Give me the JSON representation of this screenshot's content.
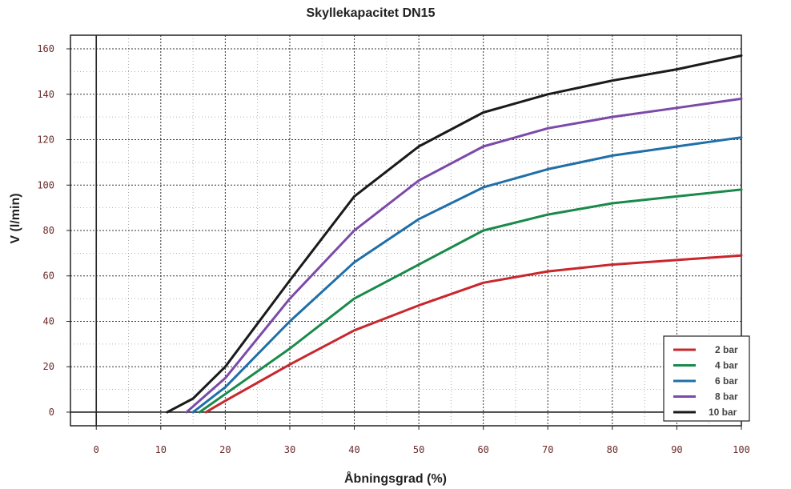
{
  "chart_data": {
    "type": "line",
    "title": "Skyllekapacitet DN15",
    "xlabel": "Åbningsgrad (%)",
    "ylabel": "V (l/min)",
    "xlim": [
      -4,
      100
    ],
    "ylim": [
      -6,
      166
    ],
    "xticks": [
      "0",
      "10",
      "20",
      "30",
      "40",
      "50",
      "60",
      "70",
      "80",
      "90",
      "100"
    ],
    "yticks": [
      "0",
      "20",
      "40",
      "60",
      "80",
      "100",
      "120",
      "140",
      "160"
    ],
    "grid": true,
    "legend_position": "bottom-right",
    "series": [
      {
        "name": "2 bar",
        "color": "#c8272d",
        "x": [
          17,
          20,
          30,
          40,
          50,
          60,
          70,
          80,
          90,
          100
        ],
        "y": [
          0,
          5,
          21,
          36,
          47,
          57,
          62,
          65,
          67,
          69
        ]
      },
      {
        "name": "4 bar",
        "color": "#1a8a4a",
        "x": [
          16,
          20,
          30,
          40,
          50,
          60,
          70,
          80,
          90,
          100
        ],
        "y": [
          0,
          8,
          28,
          50,
          65,
          80,
          87,
          92,
          95,
          98
        ]
      },
      {
        "name": "6 bar",
        "color": "#1f6fa8",
        "x": [
          15,
          20,
          30,
          40,
          50,
          60,
          70,
          80,
          90,
          100
        ],
        "y": [
          0,
          11,
          40,
          66,
          85,
          99,
          107,
          113,
          117,
          121
        ]
      },
      {
        "name": "8 bar",
        "color": "#7b4aa8",
        "x": [
          14,
          20,
          30,
          40,
          50,
          60,
          70,
          80,
          90,
          100
        ],
        "y": [
          0,
          15,
          50,
          80,
          102,
          117,
          125,
          130,
          134,
          138
        ]
      },
      {
        "name": "10 bar",
        "color": "#1a1a1a",
        "x": [
          11,
          15,
          20,
          30,
          40,
          50,
          60,
          70,
          80,
          90,
          100
        ],
        "y": [
          0,
          6,
          20,
          58,
          95,
          117,
          132,
          140,
          146,
          151,
          157
        ]
      }
    ]
  }
}
